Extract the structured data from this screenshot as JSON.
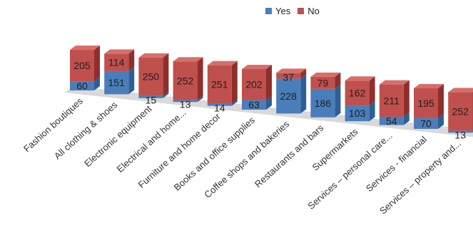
{
  "chart_data": {
    "type": "bar",
    "stacked": true,
    "three_d": true,
    "legend_position": "top",
    "categories": [
      "Fashion boutiques",
      "All clothing & shoes",
      "Electronic equipment",
      "Electrical and home...",
      "Furniture and home decor",
      "Books and office supplies",
      "Coffee shops and bakeries",
      "Restaurants and bars",
      "Supermarkets",
      "Services – personal care...",
      "Services - financial",
      "Services – property and..."
    ],
    "series": [
      {
        "name": "Yes",
        "color": "#4a7ebb",
        "values": [
          60,
          151,
          15,
          13,
          14,
          63,
          228,
          186,
          103,
          54,
          70,
          13
        ]
      },
      {
        "name": "No",
        "color": "#c0504d",
        "values": [
          205,
          114,
          250,
          252,
          251,
          202,
          37,
          79,
          162,
          211,
          195,
          252
        ]
      }
    ],
    "colors": {
      "yes": "#4a7ebb",
      "no": "#c0504d",
      "yes_dark": "#2f5e96",
      "no_dark": "#8f2f2c",
      "yes_top": "#6f9bd2",
      "no_top": "#d76e6a",
      "floor": "#d9d9d9"
    }
  }
}
